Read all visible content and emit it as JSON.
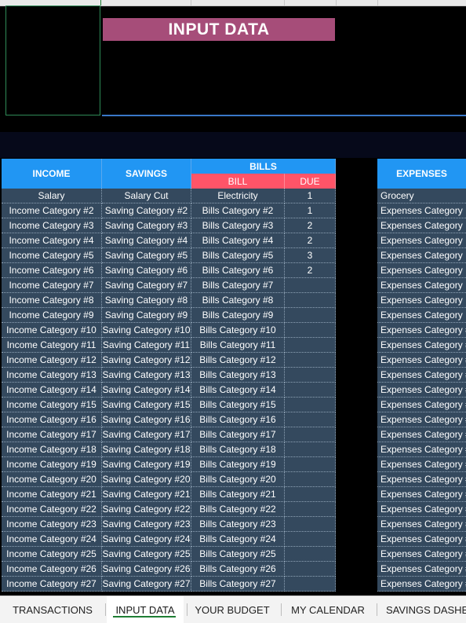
{
  "title": "INPUT DATA",
  "headers": {
    "income": "INCOME",
    "savings": "SAVINGS",
    "bills": "BILLS",
    "bill": "BILL",
    "due": "DUE",
    "expenses": "EXPENSES"
  },
  "rows": [
    {
      "income": "Salary",
      "savings": "Salary Cut",
      "bill": "Electricity",
      "due": "1",
      "expense": "Grocery"
    },
    {
      "income": "Income Category #2",
      "savings": "Saving Category #2",
      "bill": "Bills Category #2",
      "due": "1",
      "expense": "Expenses Category"
    },
    {
      "income": "Income Category #3",
      "savings": "Saving Category #3",
      "bill": "Bills Category #3",
      "due": "2",
      "expense": "Expenses Category"
    },
    {
      "income": "Income Category #4",
      "savings": "Saving Category #4",
      "bill": "Bills Category #4",
      "due": "2",
      "expense": "Expenses Category"
    },
    {
      "income": "Income Category #5",
      "savings": "Saving Category #5",
      "bill": "Bills Category #5",
      "due": "3",
      "expense": "Expenses Category"
    },
    {
      "income": "Income Category #6",
      "savings": "Saving Category #6",
      "bill": "Bills Category #6",
      "due": "2",
      "expense": "Expenses Category"
    },
    {
      "income": "Income Category #7",
      "savings": "Saving Category #7",
      "bill": "Bills Category #7",
      "due": "",
      "expense": "Expenses Category"
    },
    {
      "income": "Income Category #8",
      "savings": "Saving Category #8",
      "bill": "Bills Category #8",
      "due": "",
      "expense": "Expenses Category"
    },
    {
      "income": "Income Category #9",
      "savings": "Saving Category #9",
      "bill": "Bills Category #9",
      "due": "",
      "expense": "Expenses Category"
    },
    {
      "income": "Income Category #10",
      "savings": "Saving Category #10",
      "bill": "Bills Category #10",
      "due": "",
      "expense": "Expenses Category #"
    },
    {
      "income": "Income Category #11",
      "savings": "Saving Category #11",
      "bill": "Bills Category #11",
      "due": "",
      "expense": "Expenses Category #"
    },
    {
      "income": "Income Category #12",
      "savings": "Saving Category #12",
      "bill": "Bills Category #12",
      "due": "",
      "expense": "Expenses Category #"
    },
    {
      "income": "Income Category #13",
      "savings": "Saving Category #13",
      "bill": "Bills Category #13",
      "due": "",
      "expense": "Expenses Category #"
    },
    {
      "income": "Income Category #14",
      "savings": "Saving Category #14",
      "bill": "Bills Category #14",
      "due": "",
      "expense": "Expenses Category #"
    },
    {
      "income": "Income Category #15",
      "savings": "Saving Category #15",
      "bill": "Bills Category #15",
      "due": "",
      "expense": "Expenses Category #"
    },
    {
      "income": "Income Category #16",
      "savings": "Saving Category #16",
      "bill": "Bills Category #16",
      "due": "",
      "expense": "Expenses Category #"
    },
    {
      "income": "Income Category #17",
      "savings": "Saving Category #17",
      "bill": "Bills Category #17",
      "due": "",
      "expense": "Expenses Category #"
    },
    {
      "income": "Income Category #18",
      "savings": "Saving Category #18",
      "bill": "Bills Category #18",
      "due": "",
      "expense": "Expenses Category #"
    },
    {
      "income": "Income Category #19",
      "savings": "Saving Category #19",
      "bill": "Bills Category #19",
      "due": "",
      "expense": "Expenses Category #"
    },
    {
      "income": "Income Category #20",
      "savings": "Saving Category #20",
      "bill": "Bills Category #20",
      "due": "",
      "expense": "Expenses Category #"
    },
    {
      "income": "Income Category #21",
      "savings": "Saving Category #21",
      "bill": "Bills Category #21",
      "due": "",
      "expense": "Expenses Category #"
    },
    {
      "income": "Income Category #22",
      "savings": "Saving Category #22",
      "bill": "Bills Category #22",
      "due": "",
      "expense": "Expenses Category #"
    },
    {
      "income": "Income Category #23",
      "savings": "Saving Category #23",
      "bill": "Bills Category #23",
      "due": "",
      "expense": "Expenses Category #"
    },
    {
      "income": "Income Category #24",
      "savings": "Saving Category #24",
      "bill": "Bills Category #24",
      "due": "",
      "expense": "Expenses Category #"
    },
    {
      "income": "Income Category #25",
      "savings": "Saving Category #25",
      "bill": "Bills Category #25",
      "due": "",
      "expense": "Expenses Category #"
    },
    {
      "income": "Income Category #26",
      "savings": "Saving Category #26",
      "bill": "Bills Category #26",
      "due": "",
      "expense": "Expenses Category #"
    },
    {
      "income": "Income Category #27",
      "savings": "Saving Category #27",
      "bill": "Bills Category #27",
      "due": "",
      "expense": "Expenses Category #"
    }
  ],
  "tabs": [
    {
      "label": "TRANSACTIONS",
      "active": false
    },
    {
      "label": "INPUT DATA",
      "active": true
    },
    {
      "label": "YOUR BUDGET",
      "active": false
    },
    {
      "label": "MY CALENDAR",
      "active": false
    },
    {
      "label": "SAVINGS DASHE",
      "active": false
    }
  ],
  "colors": {
    "header_blue": "#2196f3",
    "subheader_red": "#ff5468",
    "cell_bg": "#34495e",
    "title_bg": "#a64d79",
    "sheet_bg": "#000000"
  }
}
